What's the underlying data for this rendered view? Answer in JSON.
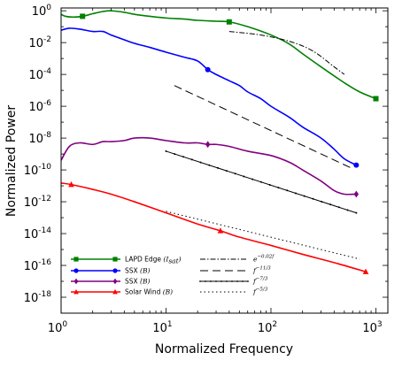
{
  "chart_data": {
    "type": "line",
    "xlabel": "Normalized Frequency",
    "ylabel": "Normalized Power",
    "x_scale": "log",
    "y_scale": "log",
    "xlim": [
      1,
      1300
    ],
    "ylim": [
      1e-19,
      1.5
    ],
    "grid": false,
    "legend_placement": "bottom-left",
    "x_ticks": [
      {
        "base": "10",
        "exp": "0",
        "value": 1
      },
      {
        "base": "10",
        "exp": "1",
        "value": 10
      },
      {
        "base": "10",
        "exp": "2",
        "value": 100
      },
      {
        "base": "10",
        "exp": "3",
        "value": 1000
      }
    ],
    "y_ticks": [
      {
        "base": "10",
        "exp": "0",
        "value": 1
      },
      {
        "base": "10",
        "exp": "-2",
        "value": 0.01
      },
      {
        "base": "10",
        "exp": "-4",
        "value": 0.0001
      },
      {
        "base": "10",
        "exp": "-6",
        "value": 1e-06
      },
      {
        "base": "10",
        "exp": "-8",
        "value": 1e-08
      },
      {
        "base": "10",
        "exp": "-10",
        "value": 1e-10
      },
      {
        "base": "10",
        "exp": "-12",
        "value": 1e-12
      },
      {
        "base": "10",
        "exp": "-14",
        "value": 1e-14
      },
      {
        "base": "10",
        "exp": "-16",
        "value": 1e-16
      },
      {
        "base": "10",
        "exp": "-18",
        "value": 1e-18
      }
    ],
    "series": [
      {
        "name": "LAPD Edge",
        "name_sub": "(I",
        "name_sub_tail": "sat",
        "name_close": ")",
        "color": "#008000",
        "marker": "square",
        "x": [
          1,
          1.1,
          1.3,
          1.6,
          2,
          2.5,
          3,
          4,
          5,
          7,
          10,
          15,
          20,
          30,
          40,
          60,
          100,
          150,
          200,
          300,
          500,
          700,
          1000
        ],
        "y": [
          0.6,
          0.45,
          0.4,
          0.45,
          0.65,
          0.9,
          1.0,
          0.8,
          0.6,
          0.45,
          0.35,
          0.3,
          0.25,
          0.22,
          0.2,
          0.1,
          0.03,
          0.008,
          0.002,
          0.0003,
          3e-05,
          8e-06,
          3e-06
        ],
        "markers_x": [
          1.6,
          40,
          1000
        ]
      },
      {
        "name": "SSX",
        "name_sub": "(B)",
        "color": "#0000ff",
        "marker": "circle",
        "x": [
          1,
          1.2,
          1.5,
          2,
          2.5,
          3,
          4,
          5,
          7,
          10,
          15,
          20,
          25,
          30,
          40,
          50,
          60,
          80,
          100,
          150,
          200,
          300,
          400,
          500,
          650
        ],
        "y": [
          0.06,
          0.08,
          0.07,
          0.05,
          0.05,
          0.03,
          0.015,
          0.009,
          0.005,
          0.0025,
          0.0012,
          0.0007,
          0.0002,
          0.0001,
          4e-05,
          2e-05,
          8e-06,
          3e-06,
          1e-06,
          2e-07,
          5e-08,
          1e-08,
          2e-09,
          5e-10,
          2e-10
        ],
        "markers_x": [
          25,
          650
        ]
      },
      {
        "name": "SSX",
        "name_sub": "(̇B)",
        "color": "#800080",
        "marker": "diamond",
        "x": [
          1,
          1.2,
          1.5,
          2,
          2.5,
          3,
          4,
          5,
          7,
          10,
          15,
          20,
          25,
          30,
          40,
          60,
          100,
          150,
          200,
          300,
          400,
          500,
          650
        ],
        "y": [
          4e-10,
          3e-09,
          5e-09,
          4e-09,
          6e-09,
          6e-09,
          7e-09,
          1e-08,
          1e-08,
          7e-09,
          5e-09,
          5e-09,
          4e-09,
          4e-09,
          3e-09,
          1.5e-09,
          8e-10,
          3e-10,
          1e-10,
          2e-11,
          5e-12,
          3e-12,
          3e-12
        ],
        "markers_x": [
          25,
          650
        ]
      },
      {
        "name": "Solar Wind",
        "name_sub": "(B)",
        "color": "#ff0000",
        "marker": "triangle",
        "x": [
          1,
          1.25,
          2,
          3,
          5,
          10,
          20,
          33,
          50,
          100,
          200,
          400,
          800
        ],
        "y": [
          1.5e-11,
          1.2e-11,
          6e-12,
          3e-12,
          1e-12,
          2e-13,
          4e-14,
          1.5e-14,
          6e-15,
          1.8e-15,
          5e-16,
          1.5e-16,
          4e-17
        ],
        "markers_x": [
          1.25,
          33,
          800
        ]
      }
    ],
    "reference_lines": [
      {
        "label_base": "e",
        "label_exp": "−0.02f",
        "style": "dash-dot",
        "x": [
          40,
          80,
          150,
          250,
          400,
          500
        ],
        "y": [
          0.05,
          0.03,
          0.012,
          0.003,
          0.0003,
          0.0001
        ]
      },
      {
        "label_base": "f",
        "label_exp": "−11/3",
        "style": "dash",
        "x": [
          12,
          600
        ],
        "y": [
          2e-05,
          1.2e-10
        ]
      },
      {
        "label_base": "f",
        "label_exp": "−7/3",
        "style": "solid-dots",
        "x": [
          10,
          650
        ],
        "y": [
          1.5e-09,
          2e-13
        ]
      },
      {
        "label_base": "f",
        "label_exp": "−5/3",
        "style": "dotted",
        "x": [
          10,
          700
        ],
        "y": [
          2.5e-13,
          2.5e-16
        ]
      }
    ]
  }
}
